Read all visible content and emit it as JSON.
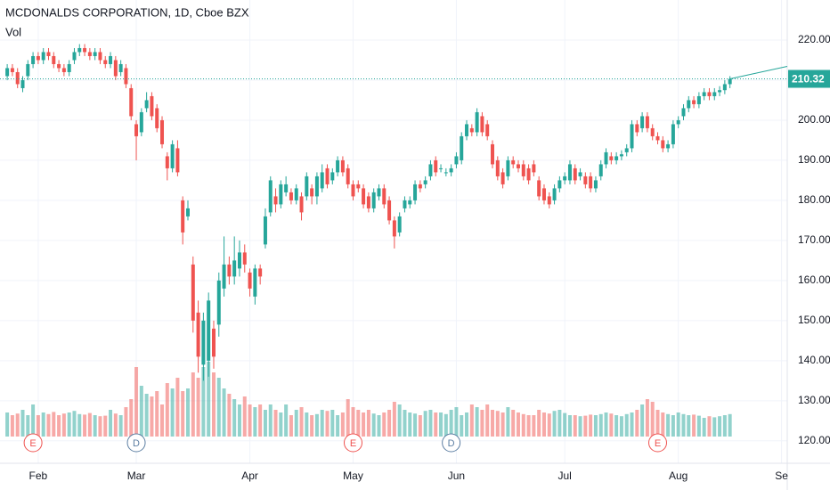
{
  "chart_data": {
    "type": "candlestick",
    "title": "MCDONALDS CORPORATION, 1D, Cboe BZX",
    "volume_label": "Vol",
    "up_color": "#26a69a",
    "down_color": "#ef5350",
    "grid": true,
    "ylim": [
      114.4,
      230
    ],
    "yticks": [
      {
        "value": 120,
        "label": "120.00"
      },
      {
        "value": 130,
        "label": "130.00"
      },
      {
        "value": 140,
        "label": "140.00"
      },
      {
        "value": 150,
        "label": "150.00"
      },
      {
        "value": 160,
        "label": "160.00"
      },
      {
        "value": 170,
        "label": "170.00"
      },
      {
        "value": 180,
        "label": "180.00"
      },
      {
        "value": 190,
        "label": "190.00"
      },
      {
        "value": 200,
        "label": "200.00"
      },
      {
        "value": 210,
        "label": "210.00"
      },
      {
        "value": 220,
        "label": "220.00"
      }
    ],
    "xlim": [
      -1.4,
      151.1
    ],
    "xticks": [
      {
        "value": 6,
        "label": "Feb"
      },
      {
        "value": 25,
        "label": "Mar"
      },
      {
        "value": 47,
        "label": "Apr"
      },
      {
        "value": 67,
        "label": "May"
      },
      {
        "value": 87,
        "label": "Jun"
      },
      {
        "value": 108,
        "label": "Jul"
      },
      {
        "value": 130,
        "label": "Aug"
      },
      {
        "value": 150,
        "label": "Se"
      }
    ],
    "last_price": 210.32,
    "volume_lim": [
      0,
      20
    ],
    "events": [
      {
        "label": "E",
        "index": 5,
        "color": "#ef5350"
      },
      {
        "label": "D",
        "index": 25,
        "color": "#5d7fa3"
      },
      {
        "label": "E",
        "index": 67,
        "color": "#ef5350"
      },
      {
        "label": "D",
        "index": 86,
        "color": "#5d7fa3"
      },
      {
        "label": "E",
        "index": 126,
        "color": "#ef5350"
      }
    ],
    "open": [
      211,
      213,
      212,
      208,
      211,
      214,
      216,
      215,
      217,
      216,
      214,
      213,
      212,
      215,
      217,
      218,
      217,
      216,
      217,
      215,
      214,
      215,
      212,
      213,
      208,
      199,
      197,
      203,
      206,
      203,
      200,
      191,
      188,
      193,
      180,
      176,
      164,
      152,
      139,
      140,
      148,
      149,
      158,
      164,
      161,
      163,
      167,
      162,
      156,
      163,
      169,
      177,
      181,
      179,
      182,
      182,
      180,
      181,
      181,
      183,
      181,
      183,
      188,
      185,
      187,
      190,
      188,
      184,
      184,
      183,
      181,
      178,
      181,
      183,
      180,
      175,
      172,
      178,
      179,
      180,
      184,
      184,
      186,
      190,
      188,
      187,
      187,
      189,
      190,
      196,
      198,
      197,
      201,
      199,
      194,
      190,
      187,
      186,
      190,
      189,
      189,
      188,
      189,
      185,
      183,
      181,
      180,
      183,
      185,
      185,
      188,
      186,
      186,
      186,
      183,
      186,
      189,
      191,
      190,
      191,
      192,
      193,
      199,
      198,
      201,
      198,
      196,
      195,
      193,
      194,
      199,
      201,
      203,
      205,
      204,
      206,
      207,
      206,
      207,
      207.5,
      209
    ],
    "high": [
      214,
      214,
      213,
      211,
      215,
      217,
      217,
      218,
      218,
      217,
      215,
      214,
      215,
      218,
      219,
      219,
      218,
      218,
      218,
      216,
      217,
      216,
      215,
      214,
      209,
      200,
      203,
      207,
      207,
      204,
      201,
      192,
      195,
      195,
      181,
      180,
      166,
      155,
      152,
      157,
      150,
      162,
      171,
      166,
      171,
      170,
      169,
      163,
      164,
      164,
      178,
      186,
      183,
      185,
      186,
      183,
      184,
      182,
      187,
      184,
      187,
      189,
      189,
      188,
      191,
      191,
      189,
      185,
      185,
      184,
      182,
      183,
      184,
      184,
      181,
      176,
      177,
      181,
      181,
      185,
      185,
      186,
      190,
      191,
      189,
      188,
      189,
      192,
      197,
      200,
      199,
      203,
      202,
      200,
      195,
      191,
      188,
      191,
      191,
      190,
      190,
      189,
      190,
      186,
      184,
      182,
      184,
      186,
      187,
      190,
      189,
      188,
      187,
      187,
      186,
      190,
      193,
      192,
      192,
      192.5,
      194,
      200,
      200,
      202,
      202,
      199,
      197,
      196,
      195,
      200,
      201,
      204,
      206,
      206,
      207,
      208,
      208,
      208,
      208.5,
      210,
      211
    ],
    "low": [
      210,
      211,
      208,
      207,
      210,
      213,
      214,
      214,
      215,
      213,
      212,
      211,
      211,
      214,
      216,
      216,
      215,
      215,
      214,
      213,
      213,
      210,
      211,
      208,
      200,
      190,
      196,
      202,
      200,
      197,
      193,
      185,
      187,
      186,
      169,
      175,
      147,
      137,
      135,
      136,
      138,
      146,
      156,
      159,
      159,
      161,
      162,
      156,
      154,
      159,
      168,
      176,
      177,
      178,
      181,
      179,
      179,
      175,
      180,
      179,
      179,
      182,
      183,
      184,
      186,
      186,
      183,
      180,
      182,
      178,
      177,
      177,
      180,
      178,
      174,
      168,
      171,
      177,
      178,
      179,
      182,
      183,
      185,
      186,
      187,
      186,
      186,
      188,
      189,
      195,
      196,
      196,
      196,
      195,
      188,
      185,
      183,
      185,
      188,
      187,
      185,
      184,
      186,
      180,
      179,
      178,
      179,
      182,
      184,
      184,
      184,
      185,
      183,
      182,
      182,
      185,
      188,
      189,
      189,
      190,
      191,
      192,
      196,
      197,
      197,
      195,
      194,
      192,
      192,
      193,
      198,
      200,
      202,
      203,
      203,
      205,
      205,
      205,
      206,
      206.5,
      208
    ],
    "close": [
      213,
      212,
      209,
      210,
      214,
      216,
      215,
      217,
      216,
      214,
      213,
      212,
      214,
      217,
      218,
      217,
      216,
      217,
      215,
      214,
      216,
      211,
      214,
      209,
      201,
      196,
      202,
      205,
      201,
      198,
      194,
      188,
      194,
      187,
      172,
      178,
      150,
      141,
      150,
      155,
      141,
      160,
      164,
      161,
      165,
      167,
      164,
      158,
      163,
      161,
      176,
      185,
      179,
      184,
      184,
      180,
      183,
      177,
      186,
      181,
      186,
      187,
      184,
      187,
      190,
      187,
      184,
      181,
      183,
      179,
      178,
      182,
      183,
      179,
      175,
      171,
      176,
      180,
      180,
      184,
      183,
      185,
      189,
      187,
      188,
      187,
      188,
      191,
      196,
      199,
      197,
      202,
      197,
      196,
      189,
      186,
      184,
      190,
      189,
      188,
      186,
      185,
      187,
      181,
      180,
      179,
      183,
      185,
      186,
      189,
      185,
      187,
      184,
      183,
      185,
      189,
      192,
      190,
      191,
      191.5,
      193,
      199,
      197,
      201,
      198,
      196,
      195,
      193,
      194,
      199,
      200,
      203,
      205,
      204,
      206,
      207,
      206,
      207,
      207.5,
      209,
      210.32
    ],
    "volume": [
      4.5,
      4,
      4.3,
      5,
      4,
      6,
      4,
      4.5,
      4.2,
      4.6,
      4,
      4.3,
      4.5,
      4.8,
      4.2,
      4.1,
      4.4,
      4,
      3.8,
      3.9,
      5,
      4.3,
      4,
      5.5,
      7,
      13,
      9.5,
      8,
      7.5,
      8.5,
      6,
      10,
      9,
      11,
      8.5,
      9,
      12,
      11,
      13,
      14,
      12,
      11,
      9,
      8,
      7,
      6,
      7.5,
      6,
      5.5,
      6,
      5,
      6,
      5,
      4.5,
      6,
      4,
      5,
      5.5,
      4.5,
      4,
      4.2,
      5,
      4.8,
      5,
      4,
      4.5,
      7,
      5.5,
      5,
      4.5,
      5,
      4.3,
      4,
      4.5,
      5,
      6.5,
      6,
      5,
      4.5,
      4.3,
      4,
      4.8,
      5,
      4.5,
      4.5,
      4.2,
      5,
      5.5,
      4,
      4.5,
      6,
      5.5,
      5,
      6,
      5,
      4.8,
      4.5,
      5.5,
      5,
      4.5,
      4.2,
      4,
      4,
      5,
      4.5,
      4.3,
      4.8,
      5,
      4.4,
      4,
      4,
      3.8,
      3.9,
      4.1,
      4,
      4.2,
      4.5,
      4.3,
      4,
      3.8,
      4.2,
      4.5,
      5,
      6,
      7,
      6.5,
      5,
      4.5,
      4.2,
      4,
      4.5,
      4.2,
      4,
      4.1,
      3.9,
      3.5,
      3.8,
      3.6,
      3.8,
      4,
      4.2
    ]
  }
}
